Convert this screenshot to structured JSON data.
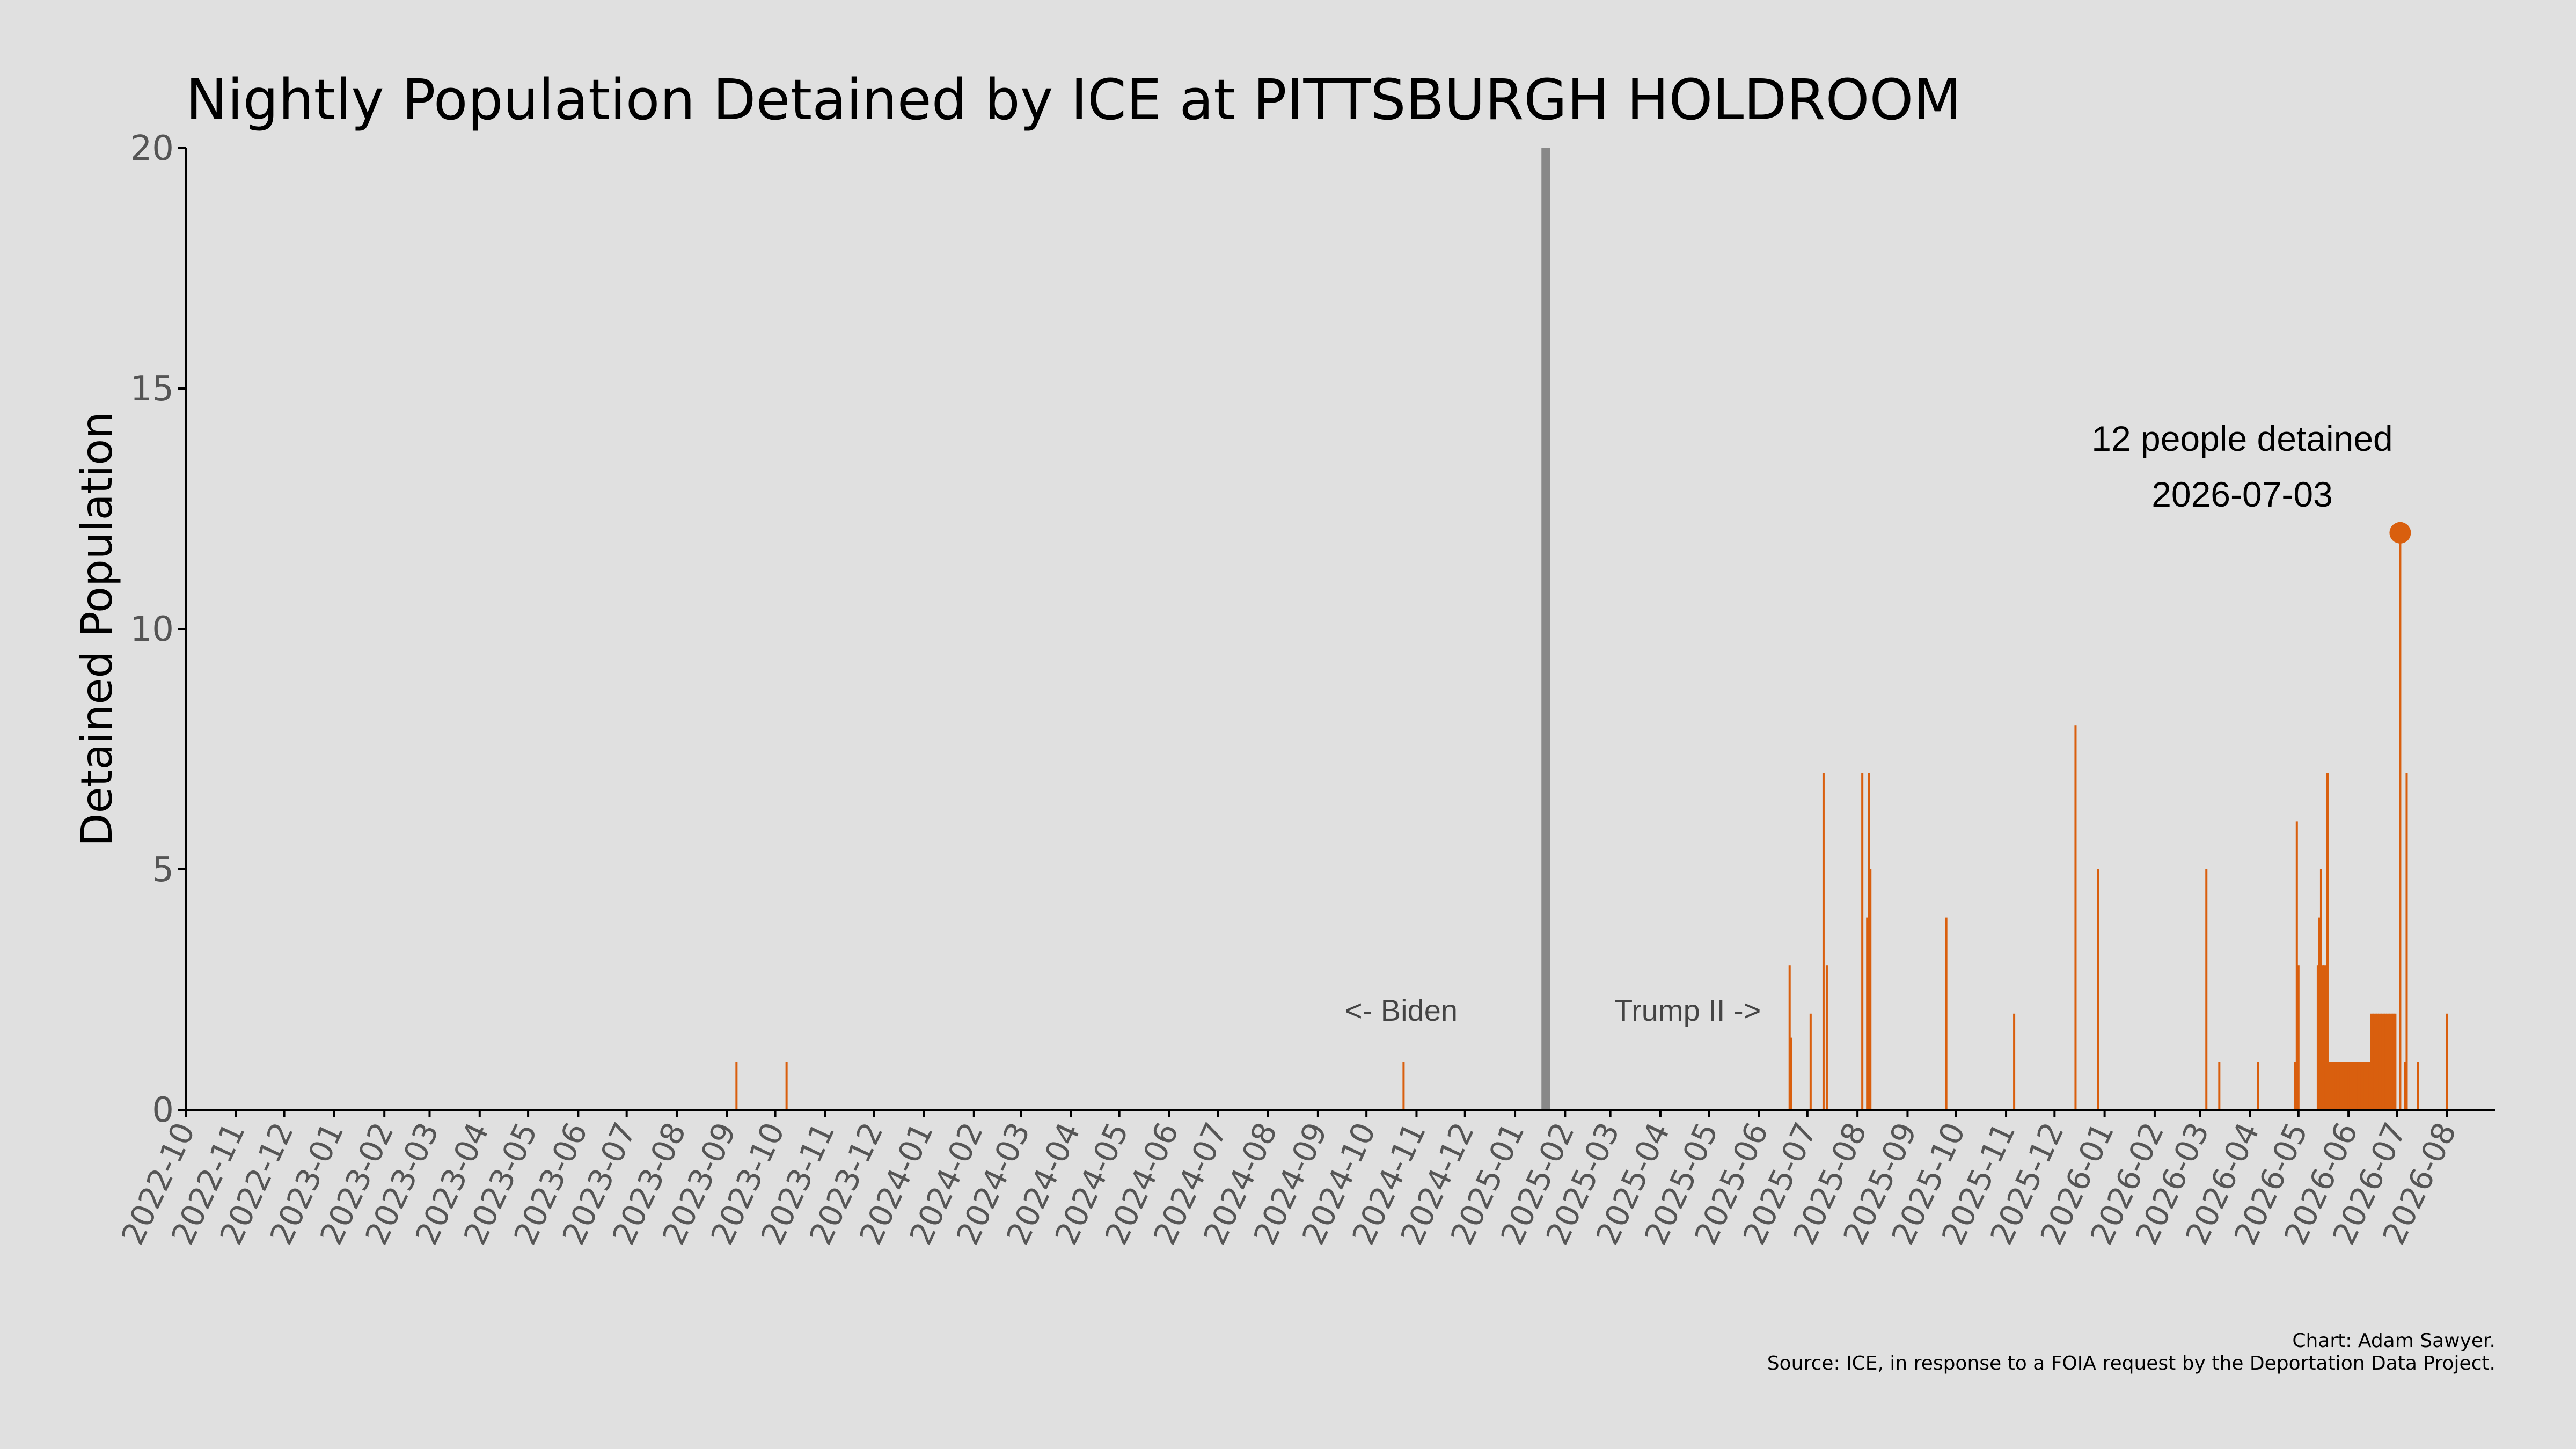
{
  "chart_data": {
    "type": "bar",
    "title": "Nightly Population Detained by ICE at PITTSBURGH HOLDROOM",
    "ylabel": "Detained Population",
    "xlabel": "",
    "ylim": [
      0,
      20
    ],
    "yticks": [
      "0",
      "5",
      "10",
      "15",
      "20"
    ],
    "xlim": [
      "2022-10-01",
      "2026-08-31"
    ],
    "xtick_labels": [
      "2022-10",
      "2022-11",
      "2022-12",
      "2023-01",
      "2023-02",
      "2023-03",
      "2023-04",
      "2023-05",
      "2023-06",
      "2023-07",
      "2023-08",
      "2023-09",
      "2023-10",
      "2023-11",
      "2023-12",
      "2024-01",
      "2024-02",
      "2024-03",
      "2024-04",
      "2024-05",
      "2024-06",
      "2024-07",
      "2024-08",
      "2024-09",
      "2024-10",
      "2024-11",
      "2024-12",
      "2025-01",
      "2025-02",
      "2025-03",
      "2025-04",
      "2025-05",
      "2025-06",
      "2025-07",
      "2025-08",
      "2025-09",
      "2025-10",
      "2025-11",
      "2025-12",
      "2026-01",
      "2026-02",
      "2026-03",
      "2026-04",
      "2026-05",
      "2026-06",
      "2026-07",
      "2026-08"
    ],
    "series": [
      {
        "color": "#d95f0e",
        "points": [
          {
            "date": "2023-09-07",
            "value": 1
          },
          {
            "date": "2023-10-08",
            "value": 1
          },
          {
            "date": "2024-10-24",
            "value": 1
          },
          {
            "date": "2025-06-20",
            "value": 3
          },
          {
            "date": "2025-06-21",
            "value": 1.5
          },
          {
            "date": "2025-07-03",
            "value": 2
          },
          {
            "date": "2025-07-11",
            "value": 7
          },
          {
            "date": "2025-07-13",
            "value": 3
          },
          {
            "date": "2025-08-04",
            "value": 7
          },
          {
            "date": "2025-08-07",
            "value": 4
          },
          {
            "date": "2025-08-08",
            "value": 7
          },
          {
            "date": "2025-08-09",
            "value": 5
          },
          {
            "date": "2025-09-25",
            "value": 4
          },
          {
            "date": "2025-11-06",
            "value": 2
          },
          {
            "date": "2025-12-14",
            "value": 8
          },
          {
            "date": "2025-12-28",
            "value": 5
          },
          {
            "date": "2026-03-05",
            "value": 5
          },
          {
            "date": "2026-03-13",
            "value": 1
          },
          {
            "date": "2026-04-06",
            "value": 1
          },
          {
            "date": "2026-04-29",
            "value": 1
          },
          {
            "date": "2026-04-30",
            "value": 6
          },
          {
            "date": "2026-05-01",
            "value": 3
          },
          {
            "date": "2026-05-13",
            "value": 3
          },
          {
            "date": "2026-05-14",
            "value": 4
          },
          {
            "date": "2026-05-15",
            "value": 5
          },
          {
            "date": "2026-05-16",
            "value": 3
          },
          {
            "date": "2026-05-17",
            "value": 3
          },
          {
            "date": "2026-05-18",
            "value": 3
          },
          {
            "date": "2026-05-19",
            "value": 7
          },
          {
            "date": "2026-05-20",
            "value": 1
          },
          {
            "date": "2026-05-21",
            "value": 1
          },
          {
            "date": "2026-05-22",
            "value": 1
          },
          {
            "date": "2026-05-23",
            "value": 1
          },
          {
            "date": "2026-05-24",
            "value": 1
          },
          {
            "date": "2026-05-25",
            "value": 1
          },
          {
            "date": "2026-05-26",
            "value": 1
          },
          {
            "date": "2026-05-27",
            "value": 1
          },
          {
            "date": "2026-05-28",
            "value": 1
          },
          {
            "date": "2026-05-29",
            "value": 1
          },
          {
            "date": "2026-05-30",
            "value": 1
          },
          {
            "date": "2026-05-31",
            "value": 1
          },
          {
            "date": "2026-06-01",
            "value": 1
          },
          {
            "date": "2026-06-02",
            "value": 1
          },
          {
            "date": "2026-06-03",
            "value": 1
          },
          {
            "date": "2026-06-04",
            "value": 1
          },
          {
            "date": "2026-06-05",
            "value": 1
          },
          {
            "date": "2026-06-06",
            "value": 1
          },
          {
            "date": "2026-06-07",
            "value": 1
          },
          {
            "date": "2026-06-08",
            "value": 1
          },
          {
            "date": "2026-06-09",
            "value": 1
          },
          {
            "date": "2026-06-10",
            "value": 1
          },
          {
            "date": "2026-06-11",
            "value": 1
          },
          {
            "date": "2026-06-12",
            "value": 1
          },
          {
            "date": "2026-06-13",
            "value": 1
          },
          {
            "date": "2026-06-14",
            "value": 1
          },
          {
            "date": "2026-06-15",
            "value": 2
          },
          {
            "date": "2026-06-16",
            "value": 2
          },
          {
            "date": "2026-06-17",
            "value": 2
          },
          {
            "date": "2026-06-18",
            "value": 2
          },
          {
            "date": "2026-06-19",
            "value": 2
          },
          {
            "date": "2026-06-20",
            "value": 2
          },
          {
            "date": "2026-06-21",
            "value": 2
          },
          {
            "date": "2026-06-22",
            "value": 2
          },
          {
            "date": "2026-06-23",
            "value": 2
          },
          {
            "date": "2026-06-24",
            "value": 2
          },
          {
            "date": "2026-06-25",
            "value": 2
          },
          {
            "date": "2026-06-26",
            "value": 2
          },
          {
            "date": "2026-06-27",
            "value": 2
          },
          {
            "date": "2026-06-28",
            "value": 2
          },
          {
            "date": "2026-06-29",
            "value": 2
          },
          {
            "date": "2026-06-30",
            "value": 2
          },
          {
            "date": "2026-07-03",
            "value": 12
          },
          {
            "date": "2026-07-06",
            "value": 1
          },
          {
            "date": "2026-07-07",
            "value": 7
          },
          {
            "date": "2026-07-14",
            "value": 1
          },
          {
            "date": "2026-08-01",
            "value": 2
          }
        ]
      }
    ],
    "divider": {
      "date": "2025-01-20",
      "color": "#888888"
    },
    "era_labels": {
      "left": "<- Biden",
      "right": "Trump II ->"
    },
    "peak": {
      "date": "2026-07-03",
      "value": 12,
      "label_line1": "12 people detained",
      "label_line2": "2026-07-03"
    },
    "grid": false,
    "legend": "none"
  },
  "credits": {
    "line1": "Chart: Adam Sawyer.",
    "line2": "Source: ICE, in response to a FOIA request by the Deportation Data Project."
  }
}
